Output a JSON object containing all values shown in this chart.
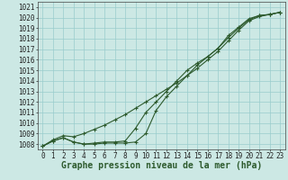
{
  "xlabel": "Graphe pression niveau de la mer (hPa)",
  "bg_color": "#cce8e4",
  "grid_color": "#99cccc",
  "line_color": "#2d5a2d",
  "x_values": [
    0,
    1,
    2,
    3,
    4,
    5,
    6,
    7,
    8,
    9,
    10,
    11,
    12,
    13,
    14,
    15,
    16,
    17,
    18,
    19,
    20,
    21,
    22,
    23
  ],
  "line1": [
    1007.8,
    1008.4,
    1008.8,
    1008.7,
    1009.0,
    1009.4,
    1009.8,
    1010.3,
    1010.8,
    1011.4,
    1012.0,
    1012.6,
    1013.2,
    1013.8,
    1014.5,
    1015.2,
    1016.0,
    1016.8,
    1017.8,
    1018.8,
    1019.7,
    1020.1,
    1020.3,
    1020.5
  ],
  "line2": [
    1007.8,
    1008.3,
    1008.6,
    1008.2,
    1008.0,
    1008.1,
    1008.2,
    1008.2,
    1008.3,
    1009.5,
    1011.0,
    1012.0,
    1013.0,
    1014.0,
    1015.0,
    1015.7,
    1016.3,
    1017.1,
    1018.1,
    1019.0,
    1019.8,
    1020.2,
    1020.3,
    1020.5
  ],
  "line3": [
    1007.8,
    1008.3,
    1008.6,
    1008.2,
    1008.0,
    1008.0,
    1008.1,
    1008.1,
    1008.1,
    1008.2,
    1009.0,
    1011.2,
    1012.5,
    1013.5,
    1014.5,
    1015.5,
    1016.3,
    1017.1,
    1018.3,
    1019.1,
    1019.9,
    1020.2,
    1020.3,
    1020.5
  ],
  "ylim": [
    1007.5,
    1021.5
  ],
  "yticks": [
    1008,
    1009,
    1010,
    1011,
    1012,
    1013,
    1014,
    1015,
    1016,
    1017,
    1018,
    1019,
    1020,
    1021
  ],
  "xticks": [
    0,
    1,
    2,
    3,
    4,
    5,
    6,
    7,
    8,
    9,
    10,
    11,
    12,
    13,
    14,
    15,
    16,
    17,
    18,
    19,
    20,
    21,
    22,
    23
  ],
  "xlabel_fontsize": 7.0,
  "xlabel_fontweight": "bold",
  "tick_fontsize": 5.5,
  "marker": "+"
}
